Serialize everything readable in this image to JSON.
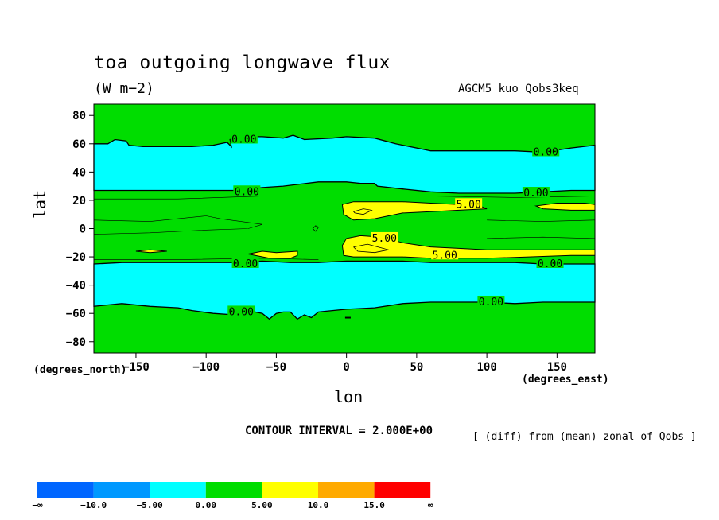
{
  "header": {
    "title": "toa outgoing longwave flux",
    "units": "(W m−2)",
    "experiment": "AGCM5_kuo_Qobs3keq"
  },
  "footer": {
    "contour_interval": "CONTOUR INTERVAL = 2.000E+00",
    "note": "[ (diff) from (mean) zonal of Qobs ]"
  },
  "axes": {
    "ylabel": "lat",
    "xlabel": "lon",
    "y_unit": "(degrees_north)",
    "x_unit": "(degrees_east)"
  },
  "colors": {
    "cyan": "#00ffff",
    "green": "#00dd00",
    "yellow": "#ffff00",
    "orange": "#ffaa00",
    "red": "#ff0000",
    "blue": "#0066ff",
    "lightblue": "#0099ff"
  },
  "chart_data": {
    "type": "heatmap",
    "title": "toa outgoing longwave flux",
    "subtitle": "(W m−2)",
    "xlabel": "lon",
    "ylabel": "lat",
    "xlim": [
      -180,
      177
    ],
    "ylim": [
      -88,
      88
    ],
    "x_ticks": [
      -150,
      -100,
      -50,
      0,
      50,
      100,
      150
    ],
    "x_tick_labels": [
      "−150",
      "−100",
      "−50",
      "0",
      "50",
      "100",
      "150"
    ],
    "y_ticks": [
      80,
      60,
      40,
      20,
      0,
      -20,
      -40,
      -60,
      -80
    ],
    "y_tick_labels": [
      "80",
      "60",
      "40",
      "20",
      "0",
      "−20",
      "−40",
      "−60",
      "−80"
    ],
    "contour_interval": 2.0,
    "contour_labels": [
      {
        "text": "0.00",
        "lon": -73,
        "lat": 63
      },
      {
        "text": "0.00",
        "lon": 142,
        "lat": 54
      },
      {
        "text": "0.00",
        "lon": -71,
        "lat": 26
      },
      {
        "text": "0.00",
        "lon": 135,
        "lat": 25
      },
      {
        "text": "5.00",
        "lon": 87,
        "lat": 17
      },
      {
        "text": "5.00",
        "lon": 27,
        "lat": -7
      },
      {
        "text": "5.00",
        "lon": 70,
        "lat": -19
      },
      {
        "text": "0.00",
        "lon": -72,
        "lat": -25
      },
      {
        "text": "0.00",
        "lon": 145,
        "lat": -25
      },
      {
        "text": "0.00",
        "lon": 103,
        "lat": -52
      },
      {
        "text": "0.00",
        "lon": -75,
        "lat": -59
      }
    ],
    "regions": [
      {
        "name": "northern cyan band",
        "level": "-5.00 to 0.00",
        "lon_range": [
          -180,
          177
        ],
        "lat_range": [
          27,
          60
        ]
      },
      {
        "name": "southern cyan band",
        "level": "-5.00 to 0.00",
        "lon_range": [
          -180,
          177
        ],
        "lat_range": [
          -55,
          -25
        ]
      },
      {
        "name": "north tropical yellow",
        "level": "0.00 to 5.00 high",
        "lon_range": [
          -3,
          177
        ],
        "lat_range": [
          4,
          20
        ]
      },
      {
        "name": "south tropical yellow",
        "level": "0.00 to 5.00 high",
        "lon_range": [
          -143,
          177
        ],
        "lat_range": [
          -22,
          -5
        ]
      }
    ],
    "colorbar": {
      "colors": [
        "#0066ff",
        "#0099ff",
        "#00ffff",
        "#00dd00",
        "#ffff00",
        "#ffaa00",
        "#ff0000"
      ],
      "labels": [
        "−∞",
        "−10.0",
        "−5.00",
        "0.00",
        "5.00",
        "10.0",
        "15.0",
        "∞"
      ]
    }
  }
}
